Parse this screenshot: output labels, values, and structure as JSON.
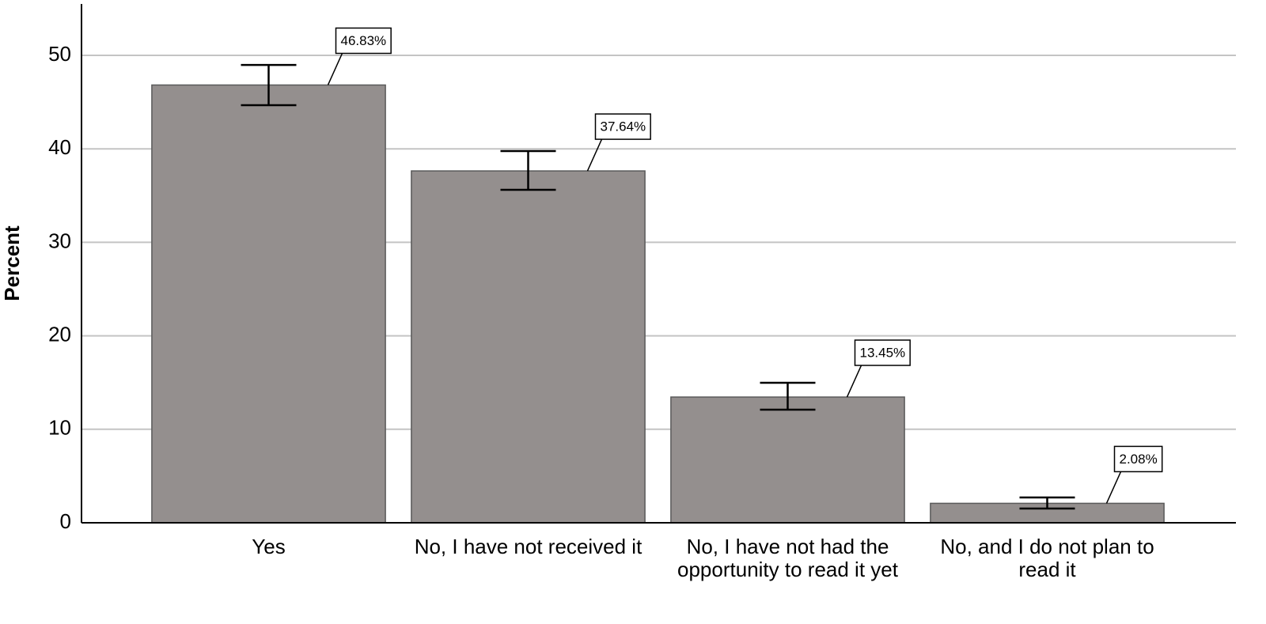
{
  "chart_data": {
    "type": "bar",
    "y_label": "Percent",
    "categories": [
      "Yes",
      "No, I have not received it",
      "No, I have not had the opportunity to read it yet",
      "No, and I do not plan to read it"
    ],
    "values": [
      46.83,
      37.64,
      13.45,
      2.08
    ],
    "value_labels": [
      "46.83%",
      "37.64%",
      "13.45%",
      "2.08%"
    ],
    "error_lower": [
      44.67,
      35.62,
      12.1,
      1.52
    ],
    "error_upper": [
      48.98,
      39.76,
      14.97,
      2.71
    ],
    "color": "#948f8e",
    "ylim": [
      0,
      55.5
    ],
    "yticks": [
      0,
      10,
      20,
      30,
      40,
      50
    ],
    "grid": true
  }
}
